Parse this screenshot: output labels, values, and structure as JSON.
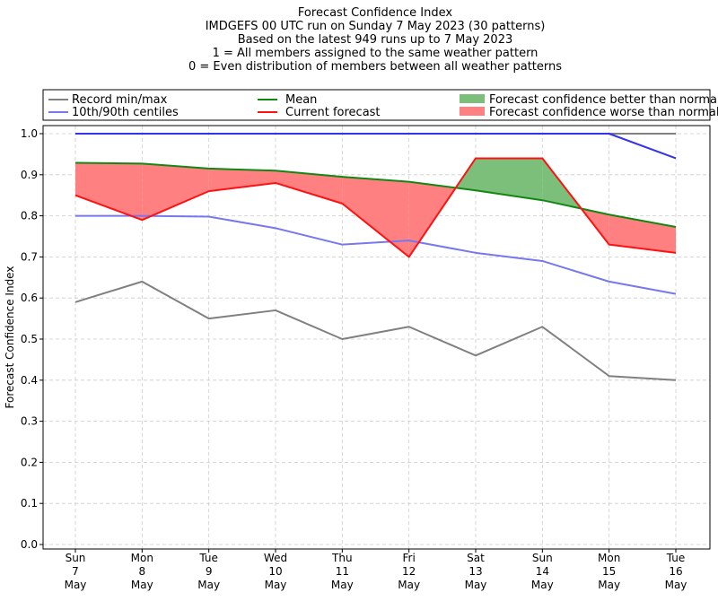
{
  "chart_data": {
    "type": "line",
    "title_lines": [
      "Forecast Confidence Index",
      "IMDGEFS 00 UTC run on Sunday 7 May 2023 (30 patterns)",
      "Based on the latest 949 runs up to 7 May 2023",
      "1 = All members assigned to the same weather pattern",
      "0 = Even distribution of members between all weather patterns"
    ],
    "ylabel": "Forecast Confidence Index",
    "xlabel": "",
    "ylim": [
      0.0,
      1.0
    ],
    "yticks": [
      "0.0",
      "0.1",
      "0.2",
      "0.3",
      "0.4",
      "0.5",
      "0.6",
      "0.7",
      "0.8",
      "0.9",
      "1.0"
    ],
    "grid": true,
    "legend_position": "top",
    "categories": [
      [
        "Sun",
        "7",
        "May"
      ],
      [
        "Mon",
        "8",
        "May"
      ],
      [
        "Tue",
        "9",
        "May"
      ],
      [
        "Wed",
        "10",
        "May"
      ],
      [
        "Thu",
        "11",
        "May"
      ],
      [
        "Fri",
        "12",
        "May"
      ],
      [
        "Sat",
        "13",
        "May"
      ],
      [
        "Sun",
        "14",
        "May"
      ],
      [
        "Mon",
        "15",
        "May"
      ],
      [
        "Tue",
        "16",
        "May"
      ]
    ],
    "series": [
      {
        "key": "record_min",
        "legend": "Record min/max",
        "color": "#808080",
        "values": [
          0.59,
          0.64,
          0.55,
          0.57,
          0.5,
          0.53,
          0.46,
          0.53,
          0.41,
          0.4
        ]
      },
      {
        "key": "record_max",
        "legend": "",
        "color": "#808080",
        "values": [
          1.0,
          1.0,
          1.0,
          1.0,
          1.0,
          1.0,
          1.0,
          1.0,
          1.0,
          1.0
        ]
      },
      {
        "key": "p10",
        "legend": "10th/90th centiles",
        "color": "#7777ee",
        "values": [
          0.8,
          0.8,
          0.798,
          0.77,
          0.73,
          0.74,
          0.71,
          0.69,
          0.64,
          0.61
        ]
      },
      {
        "key": "p90",
        "legend": "",
        "color": "#3333ee",
        "values": [
          1.0,
          1.0,
          1.0,
          1.0,
          1.0,
          1.0,
          1.0,
          1.0,
          1.0,
          0.94
        ]
      },
      {
        "key": "mean",
        "legend": "Mean",
        "color": "#118811",
        "values": [
          0.929,
          0.927,
          0.915,
          0.91,
          0.895,
          0.883,
          0.862,
          0.838,
          0.803,
          0.773
        ]
      },
      {
        "key": "current",
        "legend": "Current forecast",
        "color": "#ff1111",
        "values": [
          0.85,
          0.79,
          0.86,
          0.88,
          0.83,
          0.7,
          0.94,
          0.94,
          0.73,
          0.71
        ]
      }
    ],
    "fills": [
      {
        "legend": "Forecast confidence better than normal",
        "color": "#7bbf7b"
      },
      {
        "legend": "Forecast confidence worse than normal",
        "color": "#ff8080"
      }
    ]
  }
}
